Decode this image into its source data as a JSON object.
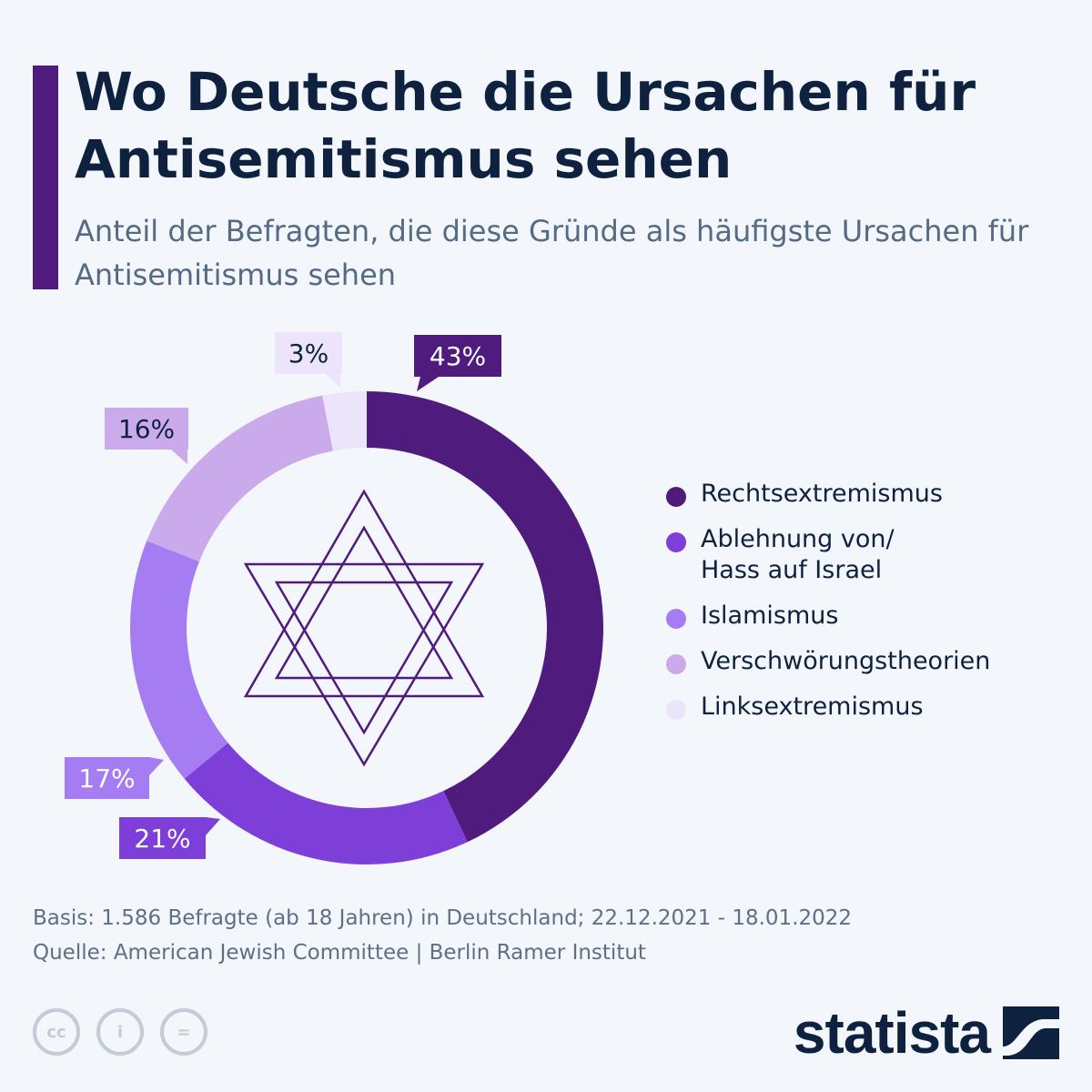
{
  "title": "Wo Deutsche die Ursachen für Antisemitismus sehen",
  "subtitle": "Anteil der Befragten, die diese Gründe als häufigste Ursachen für Antisemitismus sehen",
  "chart_data": {
    "type": "donut",
    "title": "Wo Deutsche die Ursachen für Antisemitismus sehen",
    "unit": "%",
    "center_icon": "star-of-david-icon",
    "slices": [
      {
        "label": "Rechtsextremismus",
        "legend_label": "Rechtsextremismus",
        "value": 43,
        "display": "43%",
        "color": "#4f1b7d",
        "label_text_color": "#ffffff"
      },
      {
        "label": "Ablehnung von/ Hass auf Israel",
        "legend_label": "Ablehnung von/\nHass auf Israel",
        "value": 21,
        "display": "21%",
        "color": "#7e3fd8",
        "label_text_color": "#ffffff"
      },
      {
        "label": "Islamismus",
        "legend_label": "Islamismus",
        "value": 17,
        "display": "17%",
        "color": "#a57cf2",
        "label_text_color": "#ffffff"
      },
      {
        "label": "Verschwörungstheorien",
        "legend_label": "Verschwörungstheorien",
        "value": 16,
        "display": "16%",
        "color": "#cbaaeb",
        "label_text_color": "#0e2240"
      },
      {
        "label": "Linksextremismus",
        "legend_label": "Linksextremismus",
        "value": 3,
        "display": "3%",
        "color": "#ece4fa",
        "label_text_color": "#0e2240"
      }
    ]
  },
  "footer": {
    "basis": "Basis: 1.586 Befragte (ab 18 Jahren) in Deutschland; 22.12.2021 - 18.01.2022",
    "source": "Quelle: American Jewish Committee | Berlin Ramer Institut"
  },
  "license_icons": [
    {
      "name": "cc-icon",
      "glyph": "cc"
    },
    {
      "name": "attribution-icon",
      "glyph": "i"
    },
    {
      "name": "no-derivatives-icon",
      "glyph": "="
    }
  ],
  "brand": {
    "name": "statista",
    "logo_icon": "statista-logo-icon"
  }
}
